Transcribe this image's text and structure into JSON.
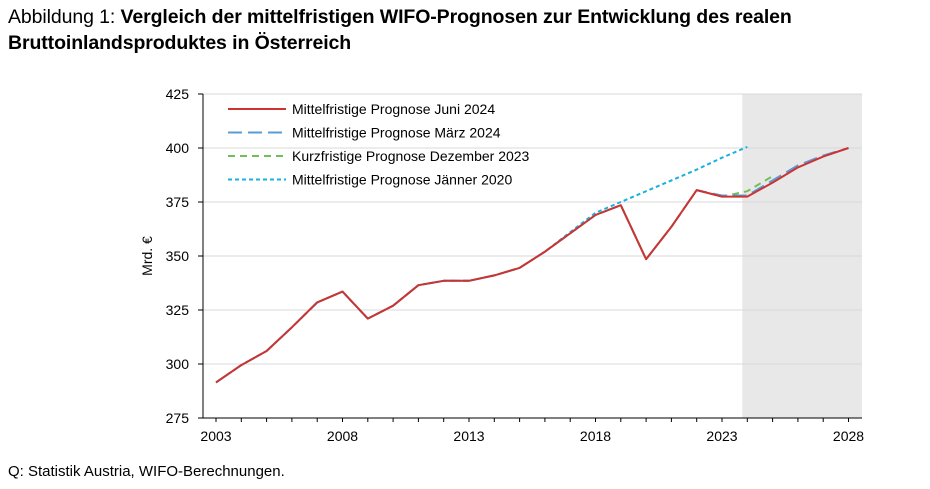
{
  "title": {
    "prefix": "Abbildung 1: ",
    "main": "Vergleich der mittelfristigen WIFO-Prognosen zur Entwicklung des realen Bruttoinlandsproduktes in Österreich"
  },
  "source": "Q: Statistik Austria, WIFO-Berechnungen.",
  "chart_data": {
    "type": "line",
    "title": "",
    "xlabel": "",
    "ylabel": "Mrd. €",
    "xlim": [
      2003,
      2028
    ],
    "ylim": [
      275,
      425
    ],
    "yticks": [
      275,
      300,
      325,
      350,
      375,
      400,
      425
    ],
    "xticks": [
      2003,
      2008,
      2013,
      2018,
      2023,
      2028
    ],
    "grid": "horizontal",
    "legend_position": "top-left",
    "forecast_shading": {
      "from": 2023.8,
      "to": 2028.6,
      "color": "#e8e8e8"
    },
    "series": [
      {
        "name": "Mittelfristige Prognose Juni 2024",
        "color": "#cc3333",
        "dash": "solid",
        "x": [
          2003,
          2004,
          2005,
          2006,
          2007,
          2008,
          2009,
          2010,
          2011,
          2012,
          2013,
          2014,
          2015,
          2016,
          2017,
          2018,
          2019,
          2020,
          2021,
          2022,
          2023,
          2024,
          2025,
          2026,
          2027,
          2028
        ],
        "values": [
          291.5,
          299.5,
          306,
          317,
          328.5,
          333.5,
          321,
          327,
          336.5,
          338.5,
          338.5,
          341,
          344.5,
          352,
          360.5,
          369,
          373.5,
          348.5,
          363.5,
          380.5,
          377.5,
          377.5,
          384,
          391,
          396,
          400
        ]
      },
      {
        "name": "Mittelfristige Prognose März 2024",
        "color": "#5b9bd5",
        "dash": "long",
        "x": [
          2003,
          2004,
          2005,
          2006,
          2007,
          2008,
          2009,
          2010,
          2011,
          2012,
          2013,
          2014,
          2015,
          2016,
          2017,
          2018,
          2019,
          2020,
          2021,
          2022,
          2023,
          2024,
          2025,
          2026,
          2027,
          2028
        ],
        "values": [
          291.5,
          299.5,
          306,
          317,
          328.5,
          333.5,
          321,
          327,
          336.5,
          338.5,
          338.5,
          341,
          344.5,
          352,
          360.5,
          369,
          373.5,
          348.5,
          363.5,
          380.5,
          378,
          378,
          385,
          392,
          396.5,
          400
        ]
      },
      {
        "name": "Kurzfristige Prognose Dezember 2023",
        "color": "#70c05a",
        "dash": "medium",
        "x": [
          2003,
          2004,
          2005,
          2006,
          2007,
          2008,
          2009,
          2010,
          2011,
          2012,
          2013,
          2014,
          2015,
          2016,
          2017,
          2018,
          2019,
          2020,
          2021,
          2022,
          2023,
          2024,
          2025
        ],
        "values": [
          291.5,
          299.5,
          306,
          317,
          328.5,
          333.5,
          321,
          327,
          336.5,
          338.5,
          338.5,
          341,
          344.5,
          352,
          360.5,
          369,
          373.5,
          348.5,
          363.5,
          380.5,
          377.5,
          380,
          387
        ]
      },
      {
        "name": "Mittelfristige Prognose Jänner 2020",
        "color": "#1ab0e0",
        "dash": "short",
        "x": [
          2003,
          2004,
          2005,
          2006,
          2007,
          2008,
          2009,
          2010,
          2011,
          2012,
          2013,
          2014,
          2015,
          2016,
          2017,
          2018,
          2019,
          2020,
          2021,
          2022,
          2023,
          2024
        ],
        "values": [
          291.5,
          299.5,
          306,
          317,
          328.5,
          333.5,
          321,
          327,
          336.5,
          338.5,
          338.5,
          341,
          344.5,
          352,
          361,
          370,
          375,
          380,
          385,
          390,
          395.5,
          400.5
        ]
      }
    ]
  }
}
